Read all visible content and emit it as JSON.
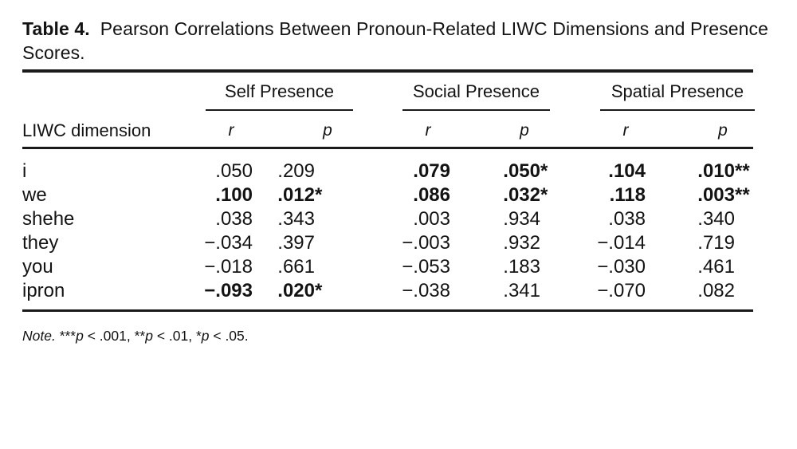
{
  "table": {
    "caption": {
      "label": "Table 4.",
      "line1": "Pearson Correlations Between Pronoun-Related LIWC Dimensions and Presence",
      "line2": "Scores."
    },
    "groups": [
      {
        "label": "Self Presence"
      },
      {
        "label": "Social Presence"
      },
      {
        "label": "Spatial Presence"
      }
    ],
    "stub_header": "LIWC dimension",
    "col_headers": {
      "r": "r",
      "p": "p"
    },
    "rows": [
      {
        "label": "i",
        "self_r": ".050",
        "self_p": ".209",
        "self_p_sig": "",
        "social_r": ".079",
        "social_p": ".050",
        "social_p_sig": "*",
        "spatial_r": ".104",
        "spatial_p": ".010",
        "spatial_p_sig": "**"
      },
      {
        "label": "we",
        "self_r": ".100",
        "self_p": ".012",
        "self_p_sig": "*",
        "social_r": ".086",
        "social_p": ".032",
        "social_p_sig": "*",
        "spatial_r": ".118",
        "spatial_p": ".003",
        "spatial_p_sig": "**"
      },
      {
        "label": "shehe",
        "self_r": ".038",
        "self_p": ".343",
        "self_p_sig": "",
        "social_r": ".003",
        "social_p": ".934",
        "social_p_sig": "",
        "spatial_r": ".038",
        "spatial_p": ".340",
        "spatial_p_sig": ""
      },
      {
        "label": "they",
        "self_r": "−.034",
        "self_p": ".397",
        "self_p_sig": "",
        "social_r": "−.003",
        "social_p": ".932",
        "social_p_sig": "",
        "spatial_r": "−.014",
        "spatial_p": ".719",
        "spatial_p_sig": ""
      },
      {
        "label": "you",
        "self_r": "−.018",
        "self_p": ".661",
        "self_p_sig": "",
        "social_r": "−.053",
        "social_p": ".183",
        "social_p_sig": "",
        "spatial_r": "−.030",
        "spatial_p": ".461",
        "spatial_p_sig": ""
      },
      {
        "label": "ipron",
        "self_r": "−.093",
        "self_p": ".020",
        "self_p_sig": "*",
        "social_r": "−.038",
        "social_p": ".341",
        "social_p_sig": "",
        "spatial_r": "−.070",
        "spatial_p": ".082",
        "spatial_p_sig": ""
      }
    ],
    "note": {
      "parts": [
        "Note.",
        " ***",
        "p",
        " < .001, **",
        "p",
        " < .01, *",
        "p",
        " < .05."
      ]
    },
    "colors": {
      "text": "#131313",
      "rule": "#1a1a1a",
      "background": "#ffffff"
    }
  }
}
